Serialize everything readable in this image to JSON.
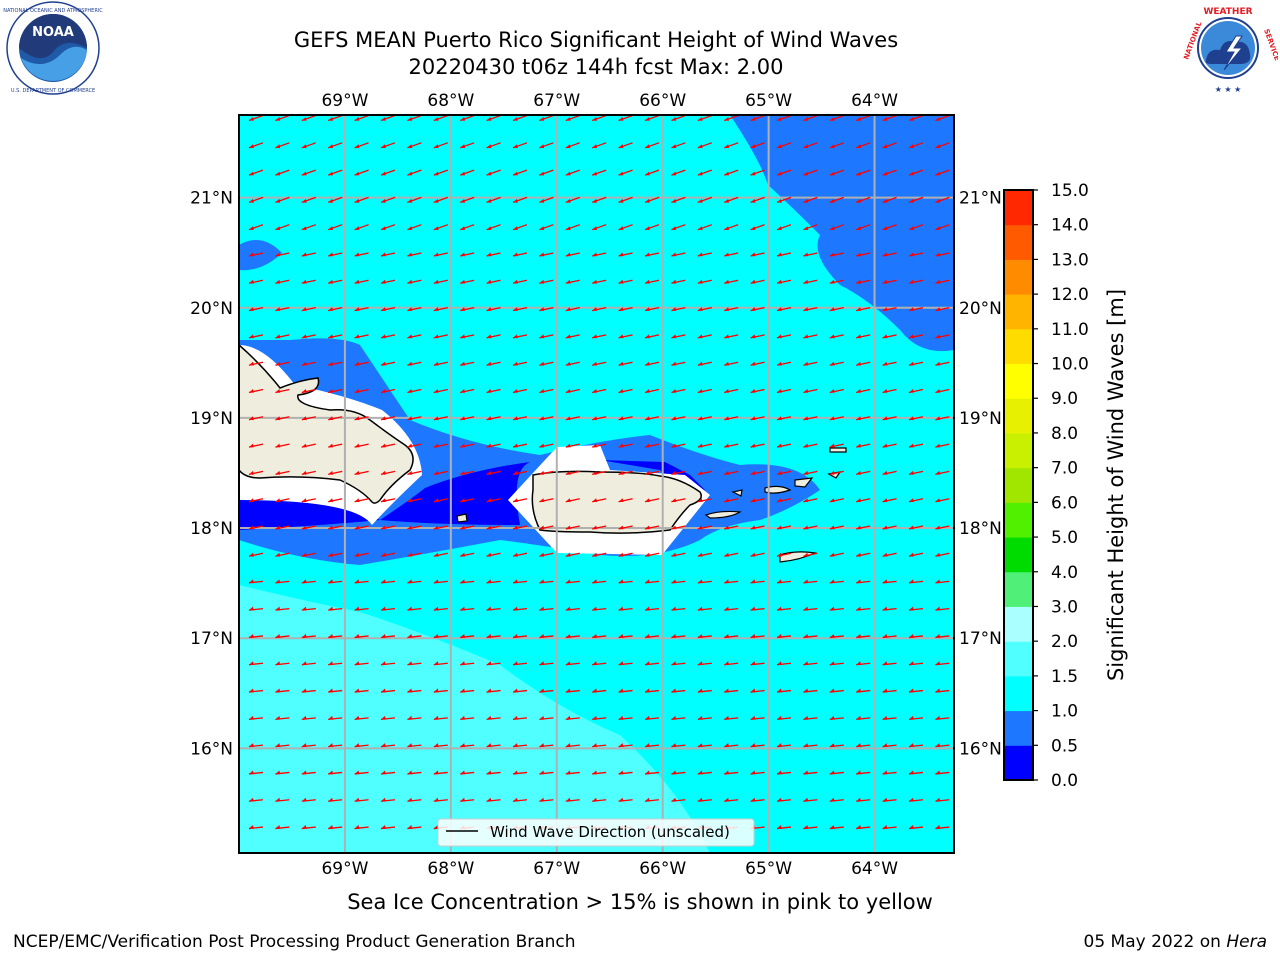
{
  "title": {
    "line1": "GEFS MEAN Puerto Rico Significant Height of Wind Waves",
    "line2": "20220430 t06z 144h fcst   Max: 2.00"
  },
  "logos": {
    "left": {
      "icon": "noaa-logo-icon",
      "text": "NOAA",
      "ring_text": "NATIONAL OCEANIC AND ATMOSPHERIC ADMINISTRATION · U.S. DEPARTMENT OF COMMERCE"
    },
    "right": {
      "icon": "nws-logo-icon",
      "ring_text": "NATIONAL WEATHER SERVICE"
    }
  },
  "map": {
    "lon_labels": [
      "69°W",
      "68°W",
      "67°W",
      "66°W",
      "65°W",
      "64°W"
    ],
    "lat_labels": [
      "21°N",
      "20°N",
      "19°N",
      "18°N",
      "17°N",
      "16°N"
    ],
    "lon_values": [
      -69,
      -68,
      -67,
      -66,
      -65,
      -64
    ],
    "lat_values": [
      21,
      20,
      19,
      18,
      17,
      16
    ],
    "extent": {
      "lon": [
        -70,
        -63.25
      ],
      "lat": [
        15.05,
        21.75
      ]
    },
    "legend_label": "Wind Wave Direction (unscaled)",
    "arrow_color": "#ff0000",
    "land_color": "#efedde"
  },
  "colorbar": {
    "title": "Significant Height of Wind Waves [m]",
    "ticks": [
      "0.0",
      "0.5",
      "1.0",
      "1.5",
      "2.0",
      "3.0",
      "4.0",
      "5.0",
      "6.0",
      "7.0",
      "8.0",
      "9.0",
      "10.0",
      "11.0",
      "12.0",
      "13.0",
      "14.0",
      "15.0"
    ],
    "colors": [
      "#0000ff",
      "#1e78ff",
      "#00ffff",
      "#50ffff",
      "#aaffff",
      "#50f078",
      "#00dc00",
      "#50f000",
      "#a0e600",
      "#c8f000",
      "#e6f000",
      "#ffff00",
      "#ffdc00",
      "#ffb400",
      "#ff8c00",
      "#ff5a00",
      "#ff2800"
    ]
  },
  "subcaption": "Sea Ice Concentration > 15% is shown in pink to yellow",
  "footer": {
    "left": "NCEP/EMC/Verification Post Processing Product Generation Branch",
    "date": "05 May 2022 on ",
    "host": "Hera"
  }
}
